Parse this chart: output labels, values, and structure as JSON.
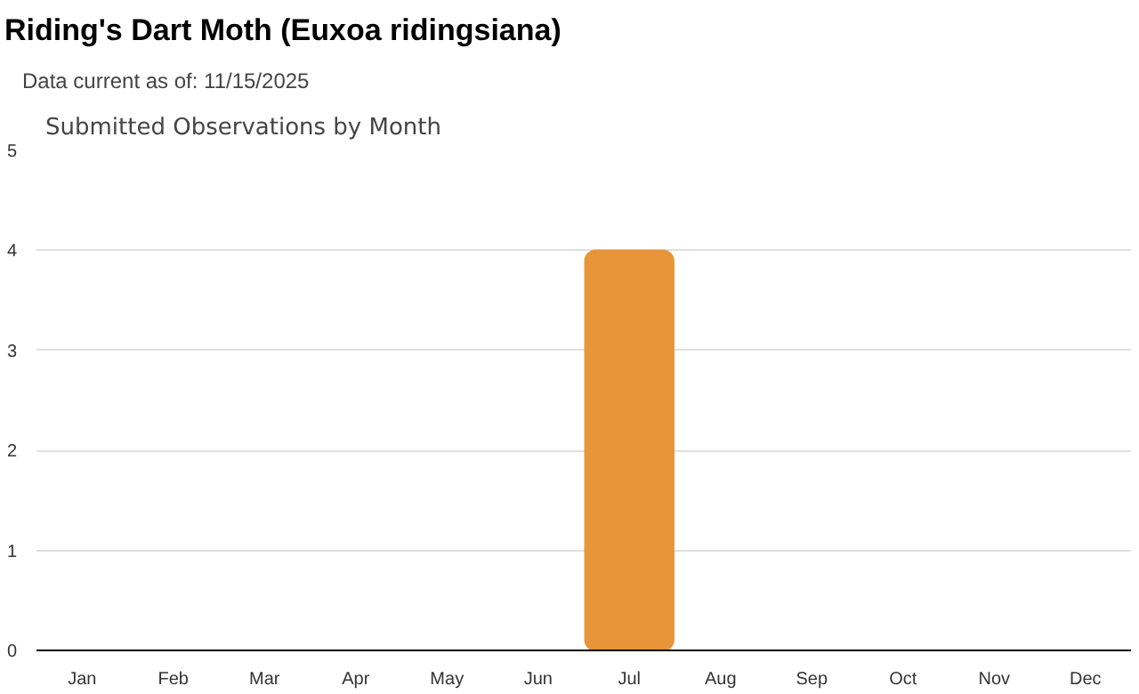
{
  "chart_data": {
    "type": "bar",
    "title": "Riding's Dart Moth   (Euxoa ridingsiana)",
    "subtitle": "Data current as of: 11/15/2025",
    "annotations": [
      "Submitted Observations by Month"
    ],
    "categories": [
      "Jan",
      "Feb",
      "Mar",
      "Apr",
      "May",
      "Jun",
      "Jul",
      "Aug",
      "Sep",
      "Oct",
      "Nov",
      "Dec"
    ],
    "values": [
      0,
      0,
      0,
      0,
      0,
      0,
      4,
      0,
      0,
      0,
      0,
      0
    ],
    "color": "#e8953a",
    "ylim": [
      0,
      5
    ],
    "yticks": [
      0,
      1,
      2,
      3,
      4,
      5
    ],
    "grid": "y"
  }
}
